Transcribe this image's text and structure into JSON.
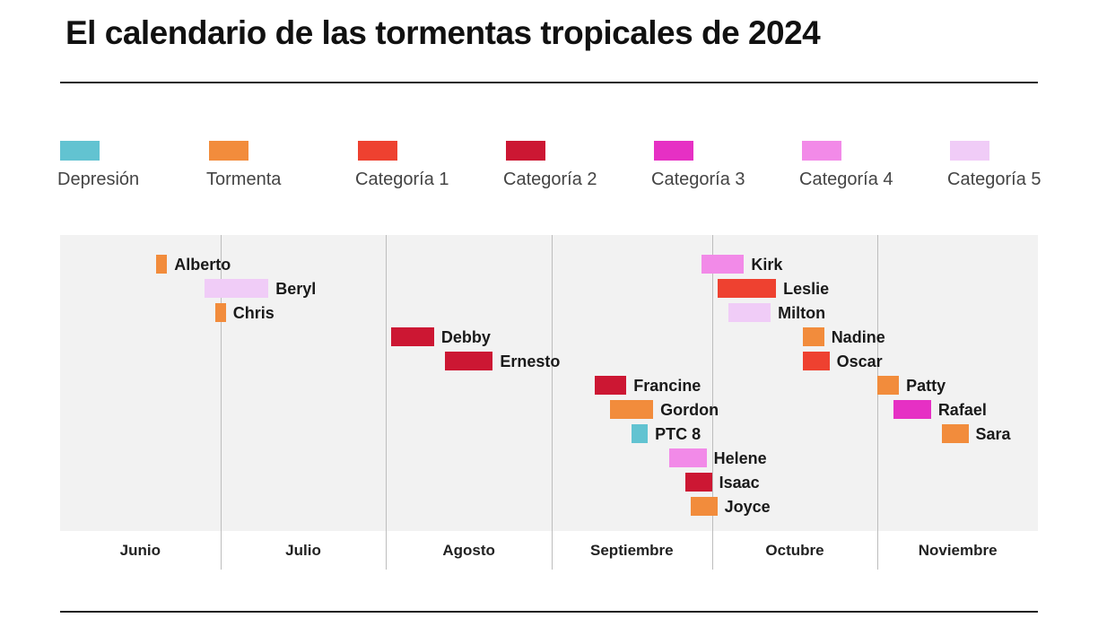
{
  "chart_data": {
    "type": "timeline",
    "title": "El calendario de las tormentas tropicales de 2024",
    "year": 2024,
    "xlim": [
      "2024-06-01",
      "2024-12-01"
    ],
    "grid": true,
    "legend_placement": "top",
    "categories": [
      {
        "key": "dep",
        "label": "Depresión",
        "color": "#62c3d1"
      },
      {
        "key": "tor",
        "label": "Tormenta",
        "color": "#f28c3c"
      },
      {
        "key": "c1",
        "label": "Categoría 1",
        "color": "#ee4130"
      },
      {
        "key": "c2",
        "label": "Categoría 2",
        "color": "#cc1733"
      },
      {
        "key": "c3",
        "label": "Categoría 3",
        "color": "#e630c4"
      },
      {
        "key": "c4",
        "label": "Categoría 4",
        "color": "#f28ae8"
      },
      {
        "key": "c5",
        "label": "Categoría 5",
        "color": "#f0ccf7"
      }
    ],
    "months": [
      "Junio",
      "Julio",
      "Agosto",
      "Septiembre",
      "Octubre",
      "Noviembre"
    ],
    "storms": [
      {
        "name": "Alberto",
        "start": "2024-06-19",
        "end": "2024-06-20",
        "category": "tor"
      },
      {
        "name": "Beryl",
        "start": "2024-06-28",
        "end": "2024-07-09",
        "category": "c5"
      },
      {
        "name": "Chris",
        "start": "2024-06-30",
        "end": "2024-07-01",
        "category": "tor"
      },
      {
        "name": "Debby",
        "start": "2024-08-02",
        "end": "2024-08-09",
        "category": "c2"
      },
      {
        "name": "Ernesto",
        "start": "2024-08-12",
        "end": "2024-08-20",
        "category": "c2"
      },
      {
        "name": "Francine",
        "start": "2024-09-09",
        "end": "2024-09-14",
        "category": "c2"
      },
      {
        "name": "Gordon",
        "start": "2024-09-12",
        "end": "2024-09-19",
        "category": "tor"
      },
      {
        "name": "PTC 8",
        "start": "2024-09-16",
        "end": "2024-09-18",
        "category": "dep"
      },
      {
        "name": "Helene",
        "start": "2024-09-23",
        "end": "2024-09-29",
        "category": "c4"
      },
      {
        "name": "Isaac",
        "start": "2024-09-26",
        "end": "2024-09-30",
        "category": "c2"
      },
      {
        "name": "Joyce",
        "start": "2024-09-27",
        "end": "2024-10-01",
        "category": "tor"
      },
      {
        "name": "Kirk",
        "start": "2024-09-29",
        "end": "2024-10-06",
        "category": "c4"
      },
      {
        "name": "Leslie",
        "start": "2024-10-02",
        "end": "2024-10-12",
        "category": "c1"
      },
      {
        "name": "Milton",
        "start": "2024-10-04",
        "end": "2024-10-11",
        "category": "c5"
      },
      {
        "name": "Nadine",
        "start": "2024-10-18",
        "end": "2024-10-21",
        "category": "tor"
      },
      {
        "name": "Oscar",
        "start": "2024-10-18",
        "end": "2024-10-22",
        "category": "c1"
      },
      {
        "name": "Patty",
        "start": "2024-11-01",
        "end": "2024-11-04",
        "category": "tor"
      },
      {
        "name": "Rafael",
        "start": "2024-11-04",
        "end": "2024-11-10",
        "category": "c3"
      },
      {
        "name": "Sara",
        "start": "2024-11-13",
        "end": "2024-11-17",
        "category": "tor"
      }
    ]
  }
}
